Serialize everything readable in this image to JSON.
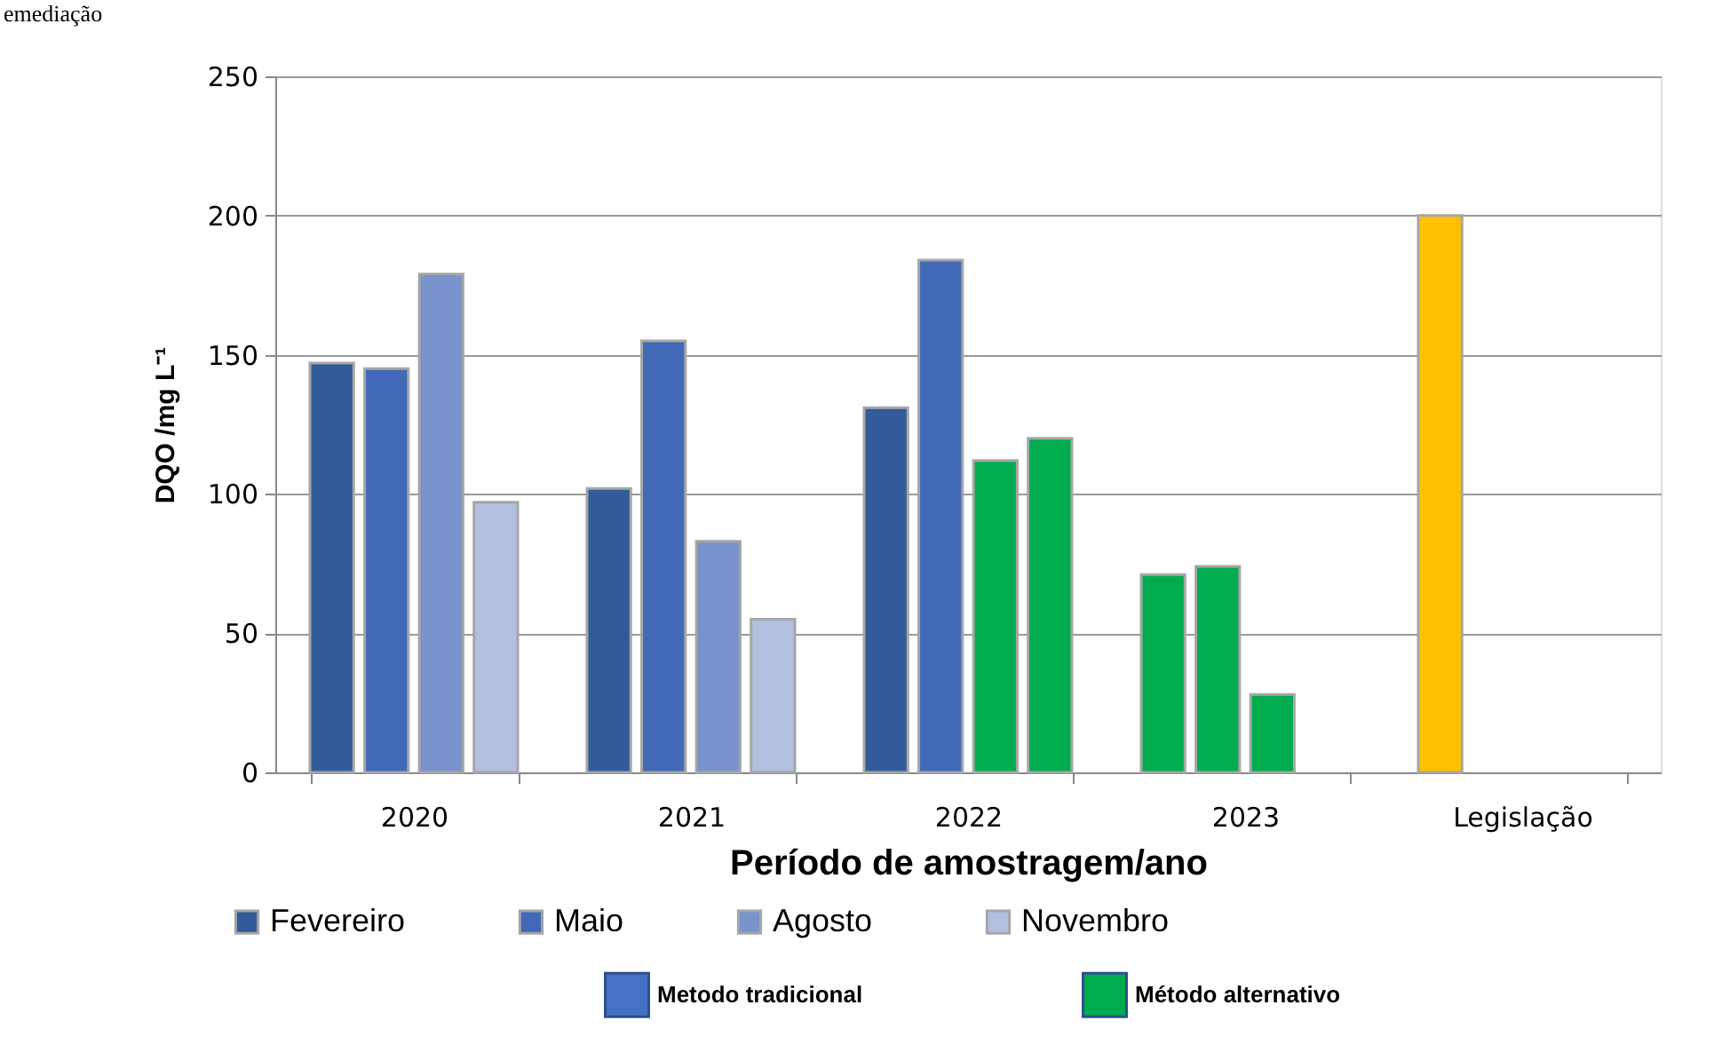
{
  "chart_data": {
    "type": "bar",
    "categories": [
      "2020",
      "2021",
      "2022",
      "2023",
      "Legislação"
    ],
    "xlabel": "Período de amostragem/ano",
    "ylabel": "DQO /mg L⁻¹",
    "ylim": [
      0,
      250
    ],
    "yticks": [
      0,
      50,
      100,
      150,
      200,
      250
    ],
    "grid": "y",
    "legend": "bottom",
    "series": [
      {
        "name": "Fevereiro",
        "color": "#335a99",
        "values": [
          147,
          102,
          131,
          71,
          200
        ],
        "colors": [
          "#335a99",
          "#335a99",
          "#335a99",
          "#00ac4e",
          "#ffc000"
        ]
      },
      {
        "name": "Maio",
        "color": "#4169b8",
        "values": [
          145,
          155,
          184,
          74,
          null
        ],
        "colors": [
          "#4169b8",
          "#4169b8",
          "#4169b8",
          "#00ac4e",
          "#4169b8"
        ]
      },
      {
        "name": "Agosto",
        "color": "#7a93cc",
        "values": [
          179,
          83,
          112,
          28,
          null
        ],
        "colors": [
          "#7a93cc",
          "#7a93cc",
          "#00ac4e",
          "#00ac4e",
          "#7a93cc"
        ]
      },
      {
        "name": "Novembro",
        "color": "#b3bfe0",
        "values": [
          97,
          55,
          120,
          null,
          null
        ],
        "colors": [
          "#b3bfe0",
          "#b3bfe0",
          "#00ac4e",
          "#b3bfe0",
          "#b3bfe0"
        ]
      },
      {
        "name": "Metodo tradicional",
        "color": "#4472c4",
        "values": [
          null,
          null,
          null,
          null,
          null
        ]
      },
      {
        "name": "Método alternativo",
        "color": "#00ac4e",
        "values": [
          null,
          null,
          null,
          null,
          null
        ]
      }
    ],
    "annotations": [
      "emediação"
    ]
  }
}
